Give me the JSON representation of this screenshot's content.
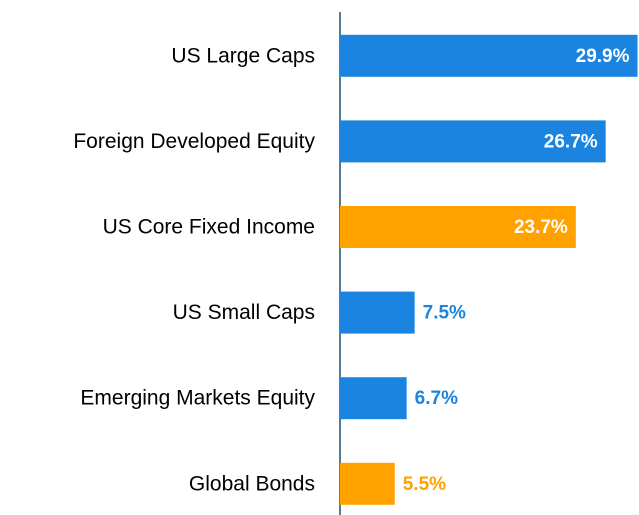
{
  "chart_data": {
    "type": "bar",
    "orientation": "horizontal",
    "categories": [
      "US Large Caps",
      "Foreign Developed Equity",
      "US Core Fixed Income",
      "US Small Caps",
      "Emerging Markets Equity",
      "Global Bonds"
    ],
    "values": [
      29.9,
      26.7,
      23.7,
      7.5,
      6.7,
      5.5
    ],
    "value_labels": [
      "29.9%",
      "26.7%",
      "23.7%",
      "7.5%",
      "6.7%",
      "5.5%"
    ],
    "colors": [
      "#1a84e0",
      "#1a84e0",
      "#ffa200",
      "#1a84e0",
      "#1a84e0",
      "#ffa200"
    ]
  }
}
